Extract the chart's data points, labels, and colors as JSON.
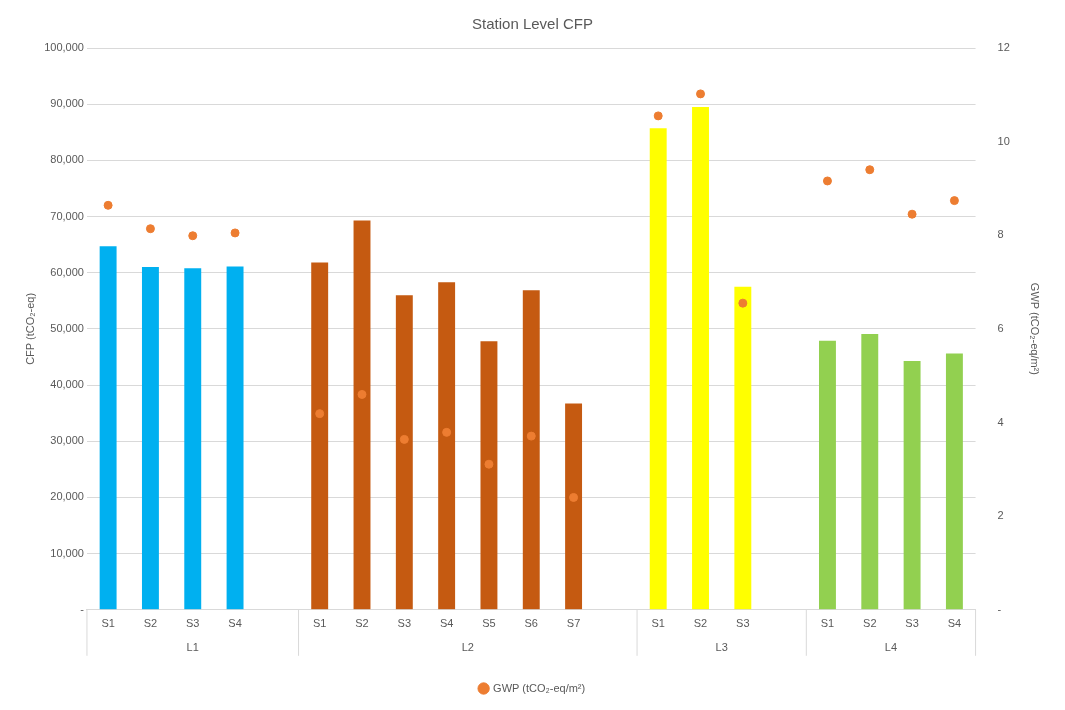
{
  "chart_data": {
    "type": "bar",
    "title": "Station Level CFP",
    "ylabel": "CFP (tCO₂-eq)",
    "y2label": "GWP (tCO₂-eq/m²)",
    "categories": [
      "S1",
      "S2",
      "S3",
      "S4",
      null,
      "S1",
      "S2",
      "S3",
      "S4",
      "S5",
      "S6",
      "S7",
      null,
      "S1",
      "S2",
      "S3",
      null,
      "S1",
      "S2",
      "S3",
      "S4"
    ],
    "series": [
      {
        "colors": [
          "#00b0f0",
          "#00b0f0",
          "#00b0f0",
          "#00b0f0",
          "#00b0f0",
          "#c55a11",
          "#c55a11",
          "#c55a11",
          "#c55a11",
          "#c55a11",
          "#c55a11",
          "#c55a11",
          "#c55a11",
          "#ffff00",
          "#ffff00",
          "#ffff00",
          "#ffff00",
          "#92d050",
          "#92d050",
          "#92d050",
          "#92d050"
        ],
        "values": [
          64700,
          61000,
          60800,
          61100,
          null,
          61800,
          69300,
          56000,
          58300,
          47800,
          56900,
          36700,
          null,
          85700,
          89500,
          57500,
          null,
          47900,
          49100,
          44300,
          45600
        ]
      },
      {
        "type": "scatter",
        "name": "GWP (tCO₂-eq/m²)",
        "color": "#ed7d31",
        "axis": "y2",
        "values": [
          8.64,
          8.14,
          7.99,
          8.05,
          null,
          4.19,
          4.6,
          3.64,
          3.79,
          3.11,
          3.71,
          2.4,
          null,
          10.55,
          11.02,
          6.55,
          null,
          9.16,
          9.4,
          8.45,
          8.74
        ]
      }
    ],
    "ylim": [
      0,
      100000
    ],
    "yticks": [
      {
        "value": 0,
        "label": "-"
      },
      {
        "value": 10000,
        "label": "10,000"
      },
      {
        "value": 20000,
        "label": "20,000"
      },
      {
        "value": 30000,
        "label": "30,000"
      },
      {
        "value": 40000,
        "label": "40,000"
      },
      {
        "value": 50000,
        "label": "50,000"
      },
      {
        "value": 60000,
        "label": "60,000"
      },
      {
        "value": 70000,
        "label": "70,000"
      },
      {
        "value": 80000,
        "label": "80,000"
      },
      {
        "value": 90000,
        "label": "90,000"
      },
      {
        "value": 100000,
        "label": "100,000"
      }
    ],
    "y2lim": [
      0,
      12
    ],
    "y2ticks": [
      {
        "value": 0,
        "label": "-"
      },
      2,
      4,
      6,
      8,
      10,
      12
    ],
    "annotations": [
      "L1",
      "L2",
      "L3",
      "L4"
    ],
    "grid": "y",
    "legend": "bottom",
    "marker": "circle"
  }
}
